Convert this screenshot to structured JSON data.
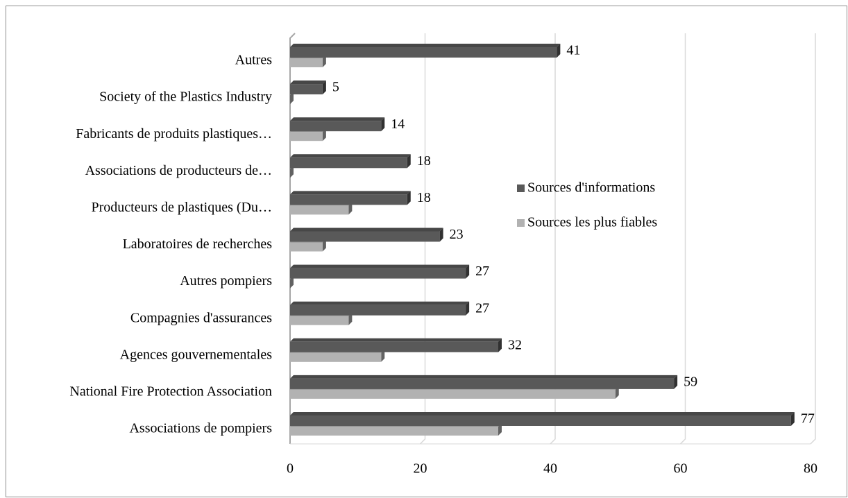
{
  "chart_data": {
    "type": "bar",
    "orientation": "horizontal",
    "categories": [
      "Associations de pompiers",
      "National Fire Protection Association",
      "Agences gouvernementales",
      "Compagnies d'assurances",
      "Autres pompiers",
      "Laboratoires de recherches",
      "Producteurs de plastiques (Du…",
      "Associations de producteurs de…",
      "Fabricants de produits plastiques…",
      "Society of the Plastics Industry",
      "Autres"
    ],
    "series": [
      {
        "name": "Sources d'informations",
        "color": "#595959",
        "values": [
          77,
          59,
          32,
          27,
          27,
          23,
          18,
          18,
          14,
          5,
          41
        ]
      },
      {
        "name": "Sources les plus fiables",
        "color": "#b2b2b2",
        "values": [
          32,
          50,
          14,
          9,
          0,
          5,
          9,
          0,
          5,
          0,
          5
        ]
      }
    ],
    "xlim": [
      0,
      80
    ],
    "xticks": [
      0,
      20,
      40,
      60,
      80
    ],
    "grid": true,
    "data_labels_series": 0
  }
}
